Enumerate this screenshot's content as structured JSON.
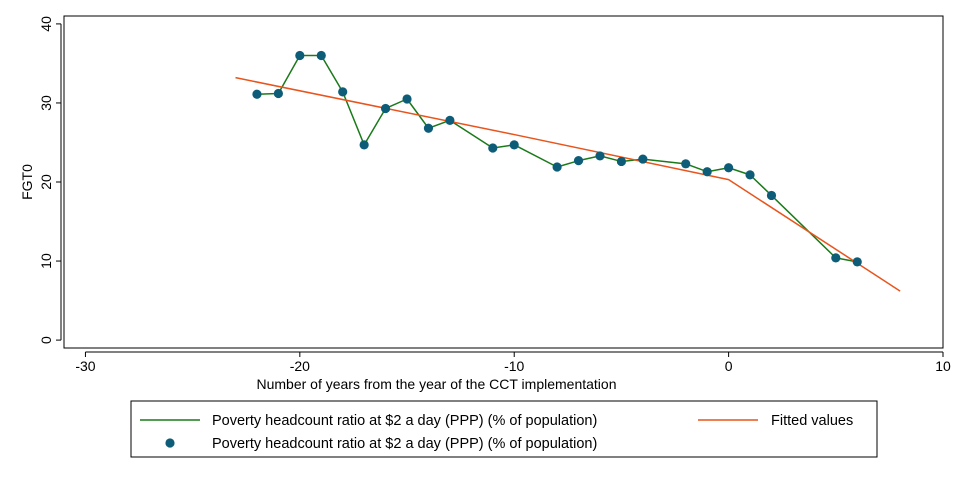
{
  "chart_data": {
    "type": "line",
    "xlabel": "Number of years from the year of the CCT implementation",
    "ylabel": "FGT0",
    "xlim": [
      -31,
      10
    ],
    "ylim": [
      -1,
      41
    ],
    "xticks": [
      -30,
      -20,
      -10,
      0,
      10
    ],
    "yticks": [
      0,
      10,
      20,
      30,
      40
    ],
    "grid": false,
    "legend_position": "bottom",
    "series": [
      {
        "name": "Poverty headcount ratio at $2 a day (PPP) (% of population)",
        "kind": "line",
        "color": "#1a7a1a",
        "x": [
          -22,
          -21,
          -20,
          -19,
          -18,
          -17,
          -16,
          -15,
          -14,
          -13,
          -11,
          -10,
          -8,
          -7,
          -6,
          -5,
          -4,
          -2,
          -1,
          0,
          1,
          2,
          5,
          6
        ],
        "y": [
          31.1,
          31.2,
          36.0,
          36.0,
          31.4,
          24.7,
          29.3,
          30.5,
          26.8,
          27.8,
          24.3,
          24.7,
          21.9,
          22.7,
          23.3,
          22.6,
          22.9,
          22.3,
          21.3,
          21.8,
          20.9,
          18.3,
          10.4,
          9.9
        ]
      },
      {
        "name": "Poverty headcount ratio at $2 a day (PPP) (% of population)",
        "kind": "scatter",
        "color": "#0e5d78",
        "x": [
          -22,
          -21,
          -20,
          -19,
          -18,
          -17,
          -16,
          -15,
          -14,
          -13,
          -11,
          -10,
          -8,
          -7,
          -6,
          -5,
          -4,
          -2,
          -1,
          0,
          1,
          2,
          5,
          6
        ],
        "y": [
          31.1,
          31.2,
          36.0,
          36.0,
          31.4,
          24.7,
          29.3,
          30.5,
          26.8,
          27.8,
          24.3,
          24.7,
          21.9,
          22.7,
          23.3,
          22.6,
          22.9,
          22.3,
          21.3,
          21.8,
          20.9,
          18.3,
          10.4,
          9.9
        ]
      },
      {
        "name": "Fitted values",
        "kind": "line",
        "color": "#e8541c",
        "x": [
          -23,
          -10,
          0,
          8
        ],
        "y": [
          33.2,
          26.0,
          20.3,
          6.2
        ]
      }
    ]
  }
}
